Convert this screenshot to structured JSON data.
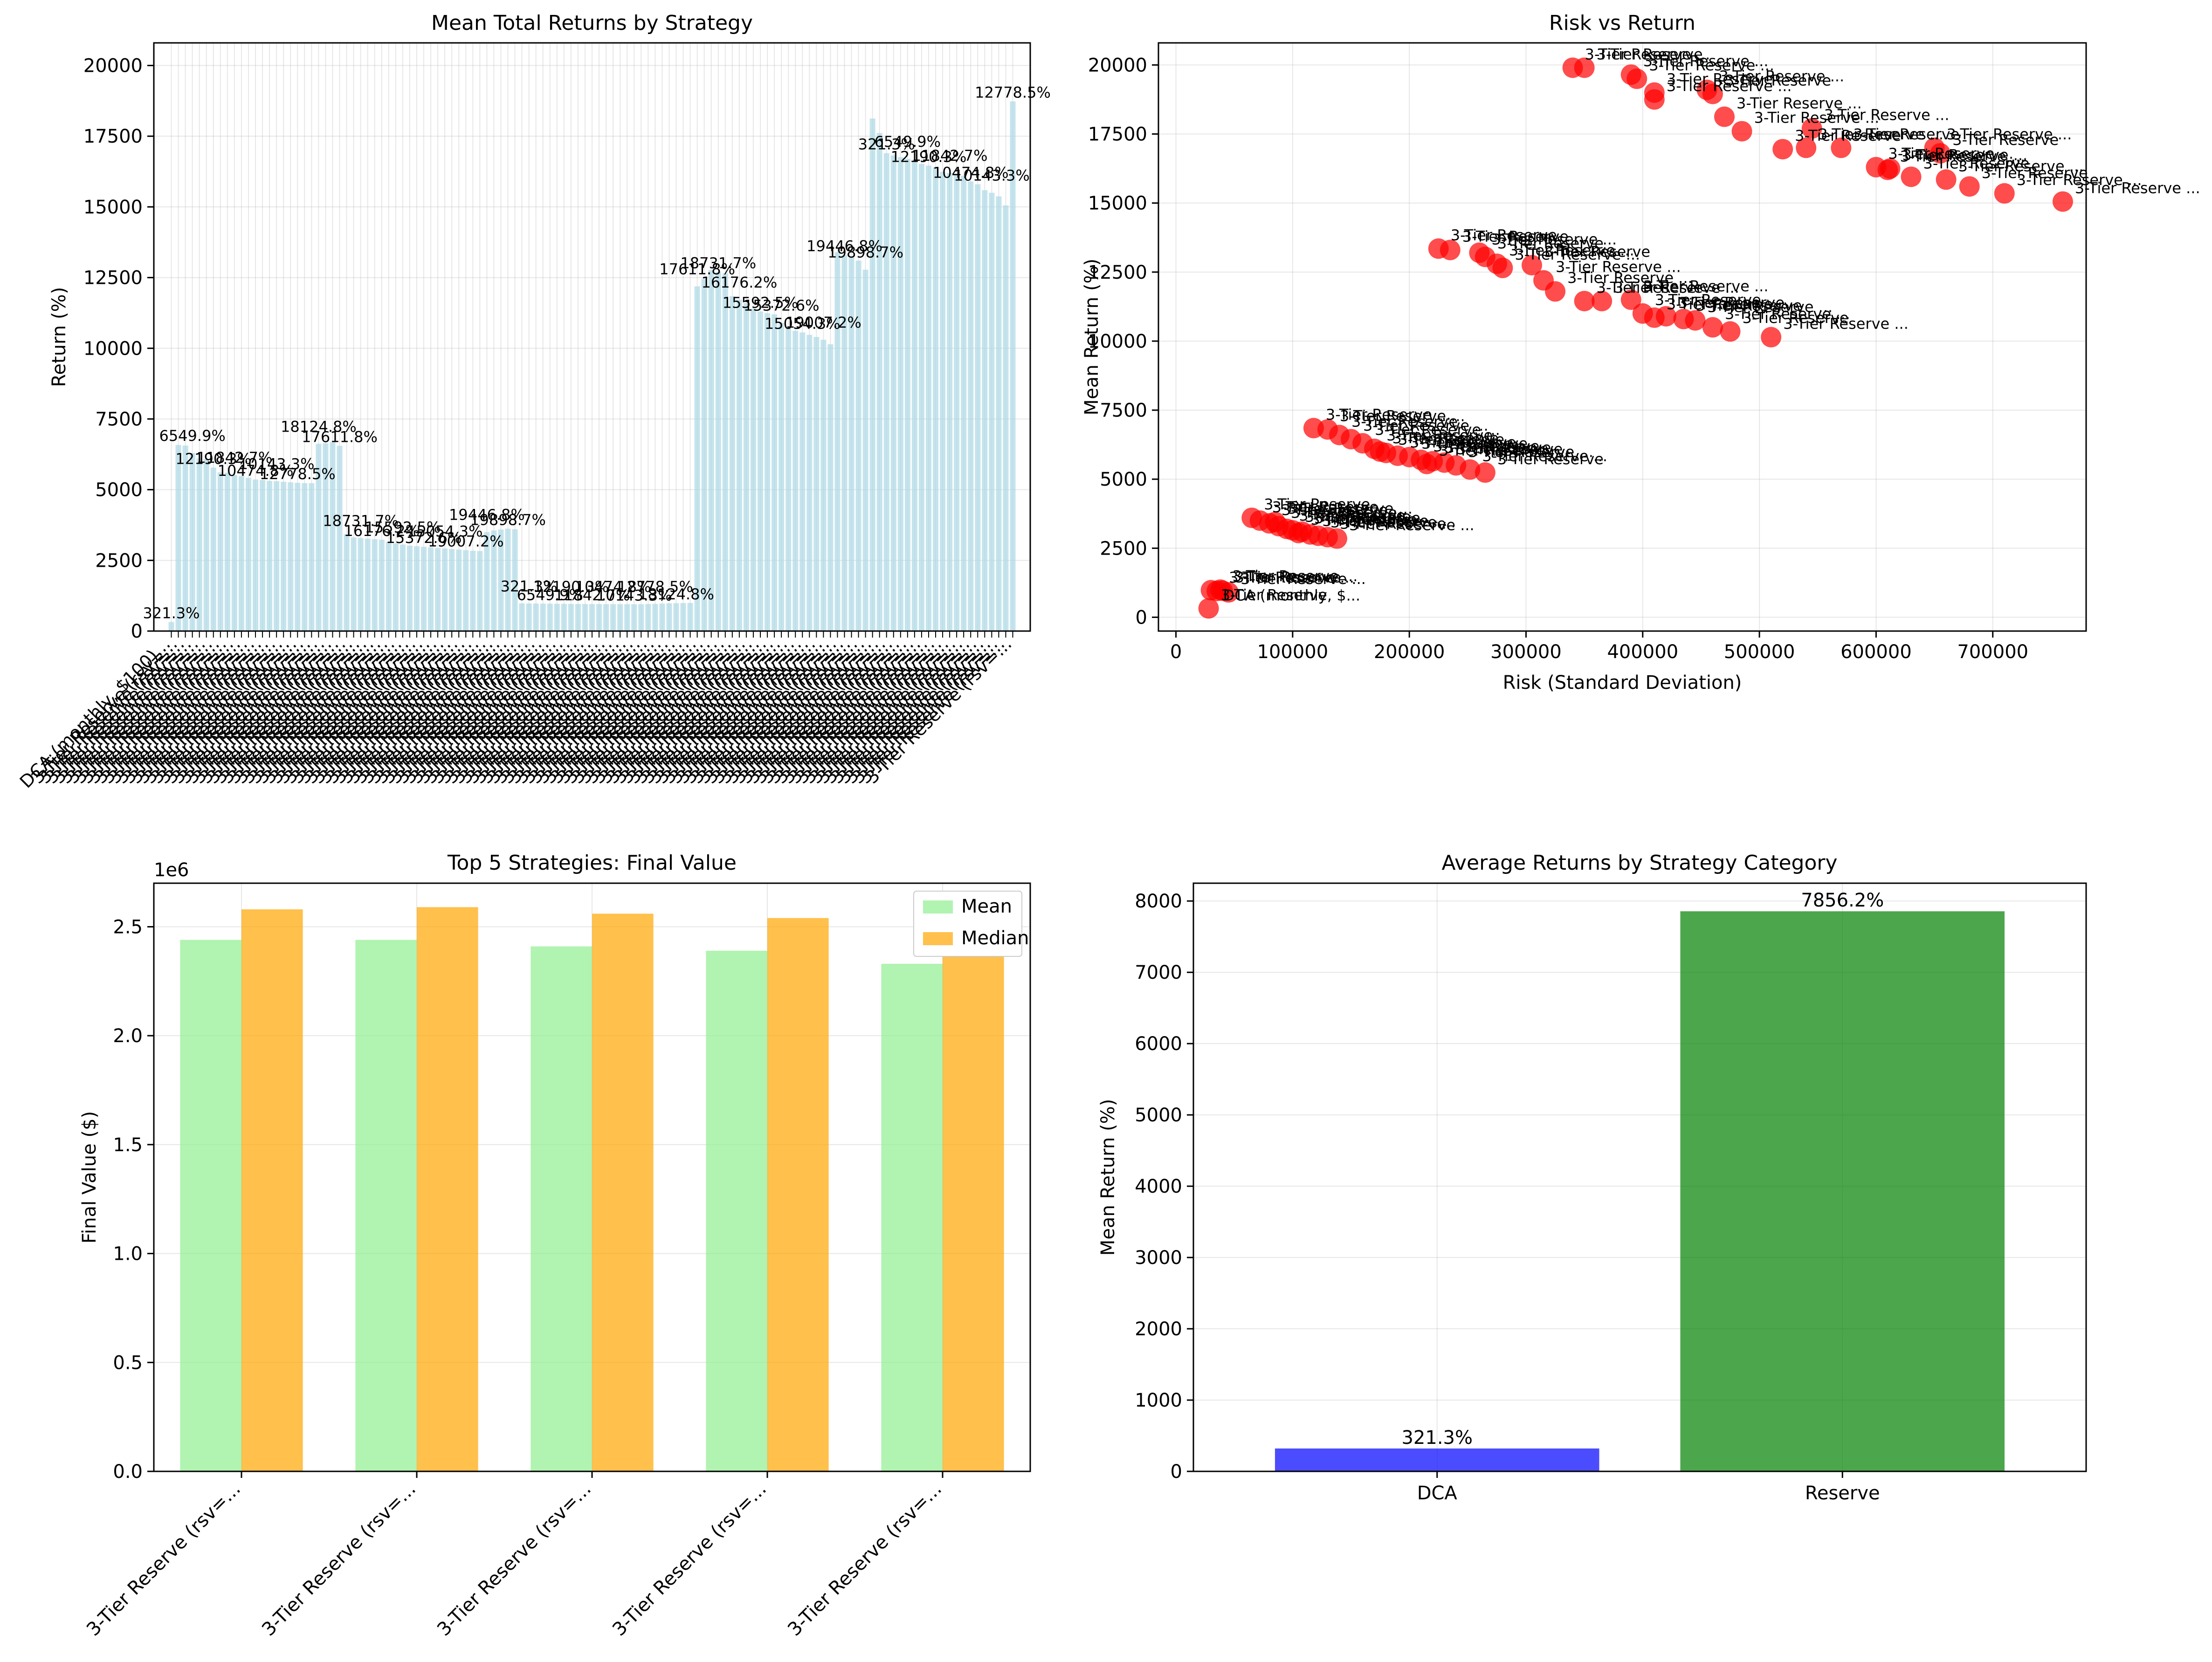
{
  "chart_data": [
    {
      "type": "bar",
      "title": "Mean Total Returns by Strategy",
      "xlabel": "",
      "ylabel": "Return (%)",
      "ylim": [
        0,
        20800
      ],
      "yticks": [
        0,
        2500,
        5000,
        7500,
        10000,
        12500,
        15000,
        17500,
        20000
      ],
      "grid": true,
      "bar_color": "#add8e6",
      "first_category_label": "DCA (monthly, $100)...",
      "last_category_label": "3-Tier Reserve (rsv=...",
      "category_count": 121,
      "groups": [
        {
          "count": 1,
          "values": [
            321.3
          ]
        },
        {
          "count": 20,
          "values": [
            6580,
            6560,
            6300,
            6110,
            6090,
            5780,
            5612,
            5600,
            5520,
            5480,
            5420,
            5360,
            5345,
            5312,
            5300,
            5280,
            5260,
            5242,
            5232,
            5230
          ]
        },
        {
          "count": 4,
          "values": [
            6620,
            6640,
            6680,
            6549.9
          ]
        },
        {
          "count": 20,
          "values": [
            3420,
            3310,
            3290,
            3270,
            3250,
            3230,
            3150,
            3100,
            3060,
            3020,
            3000,
            2980,
            2960,
            2940,
            2920,
            2900,
            2880,
            2860,
            2840,
            2830
          ]
        },
        {
          "count": 5,
          "values": [
            3500,
            3560,
            3590,
            3620,
            3600
          ]
        },
        {
          "count": 25,
          "values": [
            980,
            975,
            972,
            970,
            968,
            965,
            962,
            960,
            958,
            956,
            955,
            954,
            953,
            952,
            951,
            950,
            950,
            950,
            955,
            960,
            970,
            980,
            985,
            990,
            995
          ]
        },
        {
          "count": 20,
          "values": [
            12190.3,
            12450,
            12760,
            12700,
            12650,
            11842,
            11720,
            11600,
            11400,
            11300,
            11240,
            11200,
            10900,
            10700,
            10620,
            10560,
            10474.8,
            10400,
            10300,
            10143.3
          ]
        },
        {
          "count": 5,
          "values": [
            13400,
            13300,
            13200,
            13100,
            12778.5
          ]
        },
        {
          "count": 20,
          "values": [
            18124.8,
            17611.8,
            16900,
            16820,
            16760,
            16700,
            16600,
            16520,
            16460,
            16400,
            16240,
            16200,
            16176.2,
            16100,
            15900,
            15800,
            15592.5,
            15500,
            15372.6,
            15054.3
          ]
        },
        {
          "count": 1,
          "values": [
            18731.7
          ]
        }
      ],
      "value_labels": [
        "321.3%",
        "6549.9%",
        "12190.3%",
        "11842.7%",
        "10474.8%",
        "10143.3%",
        "12778.5%",
        "18124.8%",
        "17611.8%",
        "18731.7%",
        "16176.2%",
        "15592.5%",
        "15372.6%",
        "15054.3%",
        "19007.2%",
        "19446.8%",
        "19898.7%"
      ]
    },
    {
      "type": "scatter",
      "title": "Risk vs Return",
      "xlabel": "Risk (Standard Deviation)",
      "ylabel": "Mean Return (%)",
      "xlim": [
        -15000,
        780000
      ],
      "ylim": [
        -500,
        20800
      ],
      "xticks": [
        0,
        100000,
        200000,
        300000,
        400000,
        500000,
        600000,
        700000
      ],
      "yticks": [
        0,
        2500,
        5000,
        7500,
        10000,
        12500,
        15000,
        17500,
        20000
      ],
      "grid": true,
      "marker_color": "#ff0000",
      "annotation_dca": "DCA (monthly, $...",
      "annotation_reserve": "3-Tier Reserve ...",
      "annotation_reserve_short": "3-Tier Reserve",
      "points": [
        [
          28000,
          321
        ],
        [
          30000,
          980
        ],
        [
          35000,
          950
        ],
        [
          40000,
          960
        ],
        [
          45000,
          900
        ],
        [
          38000,
          1000
        ],
        [
          65000,
          3600
        ],
        [
          72000,
          3500
        ],
        [
          80000,
          3400
        ],
        [
          88000,
          3300
        ],
        [
          95000,
          3200
        ],
        [
          100000,
          3150
        ],
        [
          108000,
          3100
        ],
        [
          115000,
          3000
        ],
        [
          122000,
          2950
        ],
        [
          130000,
          2900
        ],
        [
          138000,
          2850
        ],
        [
          85000,
          3450
        ],
        [
          105000,
          3050
        ],
        [
          118000,
          6850
        ],
        [
          130000,
          6800
        ],
        [
          140000,
          6600
        ],
        [
          150000,
          6450
        ],
        [
          160000,
          6300
        ],
        [
          170000,
          6100
        ],
        [
          180000,
          5950
        ],
        [
          190000,
          5850
        ],
        [
          200000,
          5800
        ],
        [
          210000,
          5700
        ],
        [
          220000,
          5650
        ],
        [
          230000,
          5600
        ],
        [
          240000,
          5500
        ],
        [
          252000,
          5350
        ],
        [
          265000,
          5240
        ],
        [
          175000,
          6000
        ],
        [
          215000,
          5550
        ],
        [
          225000,
          13350
        ],
        [
          235000,
          13300
        ],
        [
          260000,
          13200
        ],
        [
          265000,
          13050
        ],
        [
          275000,
          12800
        ],
        [
          280000,
          12650
        ],
        [
          305000,
          12750
        ],
        [
          315000,
          12200
        ],
        [
          325000,
          11800
        ],
        [
          350000,
          11450
        ],
        [
          365000,
          11450
        ],
        [
          390000,
          11500
        ],
        [
          400000,
          11000
        ],
        [
          410000,
          10850
        ],
        [
          420000,
          10900
        ],
        [
          435000,
          10800
        ],
        [
          445000,
          10750
        ],
        [
          460000,
          10500
        ],
        [
          475000,
          10350
        ],
        [
          510000,
          10143
        ],
        [
          340000,
          19900
        ],
        [
          350000,
          19900
        ],
        [
          390000,
          19650
        ],
        [
          395000,
          19500
        ],
        [
          410000,
          19000
        ],
        [
          410000,
          18750
        ],
        [
          455000,
          19100
        ],
        [
          460000,
          18950
        ],
        [
          470000,
          18124
        ],
        [
          485000,
          17600
        ],
        [
          520000,
          16950
        ],
        [
          540000,
          17000
        ],
        [
          545000,
          17700
        ],
        [
          570000,
          17000
        ],
        [
          600000,
          16300
        ],
        [
          610000,
          16200
        ],
        [
          630000,
          15950
        ],
        [
          650000,
          17000
        ],
        [
          660000,
          15850
        ],
        [
          680000,
          15600
        ],
        [
          710000,
          15350
        ],
        [
          760000,
          15054
        ],
        [
          655000,
          16800
        ],
        [
          612000,
          16250
        ]
      ]
    },
    {
      "type": "bar",
      "title": "Top 5 Strategies: Final Value",
      "xlabel": "",
      "ylabel": "Final Value ($)",
      "offset_text": "1e6",
      "ylim": [
        0,
        2.7
      ],
      "yticks": [
        "0.0",
        "0.5",
        "1.0",
        "1.5",
        "2.0",
        "2.5"
      ],
      "grid": true,
      "legend_position": "top-right",
      "categories": [
        "3-Tier Reserve (rsv=...",
        "3-Tier Reserve (rsv=...",
        "3-Tier Reserve (rsv=...",
        "3-Tier Reserve (rsv=...",
        "3-Tier Reserve (rsv=..."
      ],
      "series": [
        {
          "name": "Mean",
          "color": "#90ee90",
          "values": [
            2.44,
            2.44,
            2.41,
            2.39,
            2.33
          ]
        },
        {
          "name": "Median",
          "color": "#ffa500",
          "values": [
            2.58,
            2.59,
            2.56,
            2.54,
            2.47
          ]
        }
      ]
    },
    {
      "type": "bar",
      "title": "Average Returns by Strategy Category",
      "xlabel": "",
      "ylabel": "Mean Return (%)",
      "ylim": [
        0,
        8250
      ],
      "yticks": [
        0,
        1000,
        2000,
        3000,
        4000,
        5000,
        6000,
        7000,
        8000
      ],
      "grid": true,
      "categories": [
        "DCA",
        "Reserve"
      ],
      "values": [
        321.3,
        7856.2
      ],
      "value_labels": [
        "321.3%",
        "7856.2%"
      ],
      "colors": [
        "#0000ff",
        "#008000"
      ]
    }
  ]
}
